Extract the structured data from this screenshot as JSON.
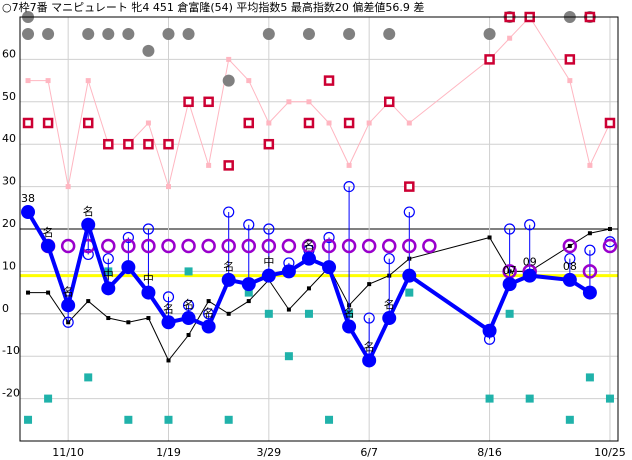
{
  "header": {
    "title": "○7枠7番 マニピュレート 牝4 451 倉富隆(54) 平均指数5 最高指数20 偏差値56.9 差"
  },
  "chart_data": {
    "type": "line",
    "title": "○7枠7番 マニピュレート 牝4 451 倉富隆(54) 平均指数5 最高指数20 偏差値56.9 差",
    "xlabel": "",
    "ylabel": "",
    "ylim": [
      -30,
      70
    ],
    "grid": true,
    "highlight_line": {
      "value": 9,
      "color": "#ffff00"
    },
    "x_ticks": [
      {
        "x": 2,
        "label": "11/10"
      },
      {
        "x": 7,
        "label": "1/19"
      },
      {
        "x": 12,
        "label": "3/29"
      },
      {
        "x": 17,
        "label": "6/7"
      },
      {
        "x": 23,
        "label": "8/16"
      },
      {
        "x": 29,
        "label": "10/25"
      }
    ],
    "y_ticks": [
      -20,
      -10,
      0,
      10,
      20,
      30,
      40,
      50,
      60
    ],
    "colors": {
      "main": "#0000ff",
      "purple": "#9900cc",
      "teal": "#20b2aa",
      "crimson": "#cc0033",
      "pink": "#ffb6c1",
      "gray": "#808080",
      "black": "#000000"
    },
    "series": [
      {
        "style": "main-blue",
        "points": [
          {
            "x": 0,
            "y": 24,
            "label": "38"
          },
          {
            "x": 1,
            "y": 16,
            "label": "名"
          },
          {
            "x": 2,
            "y": 2,
            "label": "名"
          },
          {
            "x": 3,
            "y": 21,
            "label": "名"
          },
          {
            "x": 4,
            "y": 6,
            "label": "中"
          },
          {
            "x": 5,
            "y": 11,
            "label": ""
          },
          {
            "x": 6,
            "y": 5,
            "label": "中"
          },
          {
            "x": 7,
            "y": -2,
            "label": "名"
          },
          {
            "x": 8,
            "y": -1,
            "label": "名"
          },
          {
            "x": 9,
            "y": -3,
            "label": "名"
          },
          {
            "x": 10,
            "y": 8,
            "label": "名"
          },
          {
            "x": 11,
            "y": 7,
            "label": ""
          },
          {
            "x": 12,
            "y": 9,
            "label": "中"
          },
          {
            "x": 13,
            "y": 10,
            "label": ""
          },
          {
            "x": 14,
            "y": 13,
            "label": "名"
          },
          {
            "x": 15,
            "y": 11,
            "label": ""
          },
          {
            "x": 16,
            "y": -3,
            "label": "名"
          },
          {
            "x": 17,
            "y": -11,
            "label": "名"
          },
          {
            "x": 18,
            "y": -1,
            "label": "名"
          },
          {
            "x": 19,
            "y": 9,
            "label": ""
          },
          {
            "x": 23,
            "y": -4,
            "label": ""
          },
          {
            "x": 24,
            "y": 7,
            "label": "07"
          },
          {
            "x": 25,
            "y": 9,
            "label": "09"
          },
          {
            "x": 27,
            "y": 8,
            "label": "08"
          },
          {
            "x": 28,
            "y": 5,
            "label": ""
          }
        ]
      },
      {
        "style": "open-blue-circle",
        "stems": true,
        "points": [
          {
            "x": 0,
            "y": 24,
            "label": ""
          },
          {
            "x": 1,
            "y": 16,
            "label": ""
          },
          {
            "x": 2,
            "y": -2,
            "label": ""
          },
          {
            "x": 3,
            "y": 14,
            "label": ""
          },
          {
            "x": 4,
            "y": 13,
            "label": ""
          },
          {
            "x": 5,
            "y": 18,
            "label": ""
          },
          {
            "x": 6,
            "y": 20,
            "label": ""
          },
          {
            "x": 7,
            "y": 4,
            "label": ""
          },
          {
            "x": 8,
            "y": 2,
            "label": ""
          },
          {
            "x": 9,
            "y": 0,
            "label": ""
          },
          {
            "x": 10,
            "y": 24,
            "label": ""
          },
          {
            "x": 11,
            "y": 21,
            "label": ""
          },
          {
            "x": 12,
            "y": 20,
            "label": ""
          },
          {
            "x": 13,
            "y": 12,
            "label": ""
          },
          {
            "x": 14,
            "y": 15,
            "label": ""
          },
          {
            "x": 15,
            "y": 18,
            "label": ""
          },
          {
            "x": 16,
            "y": 30,
            "label": ""
          },
          {
            "x": 17,
            "y": -1,
            "label": ""
          },
          {
            "x": 18,
            "y": 13,
            "label": ""
          },
          {
            "x": 19,
            "y": 24,
            "label": ""
          },
          {
            "x": 23,
            "y": -6,
            "label": ""
          },
          {
            "x": 24,
            "y": 20,
            "label": ""
          },
          {
            "x": 25,
            "y": 21,
            "label": ""
          },
          {
            "x": 27,
            "y": 13,
            "label": ""
          },
          {
            "x": 28,
            "y": 15,
            "label": ""
          },
          {
            "x": 29,
            "y": 17,
            "label": ""
          }
        ]
      },
      {
        "style": "purple-ring",
        "points": [
          {
            "x": 1,
            "y": 16,
            "label": ""
          },
          {
            "x": 2,
            "y": 16,
            "label": ""
          },
          {
            "x": 3,
            "y": 16,
            "label": ""
          },
          {
            "x": 4,
            "y": 16,
            "label": ""
          },
          {
            "x": 5,
            "y": 16,
            "label": ""
          },
          {
            "x": 6,
            "y": 16,
            "label": ""
          },
          {
            "x": 7,
            "y": 16,
            "label": ""
          },
          {
            "x": 8,
            "y": 16,
            "label": ""
          },
          {
            "x": 9,
            "y": 16,
            "label": ""
          },
          {
            "x": 10,
            "y": 16,
            "label": ""
          },
          {
            "x": 11,
            "y": 16,
            "label": ""
          },
          {
            "x": 12,
            "y": 16,
            "label": ""
          },
          {
            "x": 13,
            "y": 16,
            "label": ""
          },
          {
            "x": 14,
            "y": 16,
            "label": ""
          },
          {
            "x": 15,
            "y": 16,
            "label": ""
          },
          {
            "x": 16,
            "y": 16,
            "label": ""
          },
          {
            "x": 17,
            "y": 16,
            "label": ""
          },
          {
            "x": 18,
            "y": 16,
            "label": ""
          },
          {
            "x": 19,
            "y": 16,
            "label": ""
          },
          {
            "x": 20,
            "y": 16,
            "label": ""
          },
          {
            "x": 24,
            "y": 10,
            "label": ""
          },
          {
            "x": 25,
            "y": 10,
            "label": ""
          },
          {
            "x": 27,
            "y": 16,
            "label": ""
          },
          {
            "x": 28,
            "y": 10,
            "label": ""
          },
          {
            "x": 29,
            "y": 16,
            "label": ""
          }
        ]
      },
      {
        "style": "black-step",
        "points": [
          {
            "x": 0,
            "y": 5,
            "label": ""
          },
          {
            "x": 1,
            "y": 5,
            "label": ""
          },
          {
            "x": 2,
            "y": -2,
            "label": ""
          },
          {
            "x": 3,
            "y": 3,
            "label": ""
          },
          {
            "x": 4,
            "y": -1,
            "label": ""
          },
          {
            "x": 5,
            "y": -2,
            "label": ""
          },
          {
            "x": 6,
            "y": -1,
            "label": ""
          },
          {
            "x": 7,
            "y": -11,
            "label": ""
          },
          {
            "x": 8,
            "y": -5,
            "label": ""
          },
          {
            "x": 9,
            "y": 3,
            "label": ""
          },
          {
            "x": 10,
            "y": 0,
            "label": ""
          },
          {
            "x": 11,
            "y": 3,
            "label": ""
          },
          {
            "x": 12,
            "y": 8,
            "label": ""
          },
          {
            "x": 13,
            "y": 1,
            "label": ""
          },
          {
            "x": 14,
            "y": 6,
            "label": ""
          },
          {
            "x": 15,
            "y": 11,
            "label": ""
          },
          {
            "x": 16,
            "y": 2,
            "label": ""
          },
          {
            "x": 17,
            "y": 7,
            "label": ""
          },
          {
            "x": 18,
            "y": 9,
            "label": ""
          },
          {
            "x": 19,
            "y": 13,
            "label": ""
          },
          {
            "x": 23,
            "y": 18,
            "label": ""
          },
          {
            "x": 24,
            "y": 10,
            "label": ""
          },
          {
            "x": 25,
            "y": 10,
            "label": ""
          },
          {
            "x": 27,
            "y": 16,
            "label": ""
          },
          {
            "x": 28,
            "y": 19,
            "label": ""
          },
          {
            "x": 29,
            "y": 20,
            "label": ""
          }
        ]
      },
      {
        "style": "teal-square",
        "points": [
          {
            "x": 0,
            "y": -25,
            "label": ""
          },
          {
            "x": 1,
            "y": -20,
            "label": ""
          },
          {
            "x": 2,
            "y": 2,
            "label": ""
          },
          {
            "x": 3,
            "y": -15,
            "label": ""
          },
          {
            "x": 4,
            "y": 10,
            "label": ""
          },
          {
            "x": 5,
            "y": -25,
            "label": ""
          },
          {
            "x": 7,
            "y": -25,
            "label": ""
          },
          {
            "x": 8,
            "y": 10,
            "label": ""
          },
          {
            "x": 10,
            "y": -25,
            "label": ""
          },
          {
            "x": 11,
            "y": 5,
            "label": ""
          },
          {
            "x": 12,
            "y": 0,
            "label": ""
          },
          {
            "x": 13,
            "y": -10,
            "label": ""
          },
          {
            "x": 14,
            "y": 0,
            "label": ""
          },
          {
            "x": 15,
            "y": -25,
            "label": ""
          },
          {
            "x": 16,
            "y": 0,
            "label": ""
          },
          {
            "x": 19,
            "y": 5,
            "label": ""
          },
          {
            "x": 23,
            "y": -20,
            "label": ""
          },
          {
            "x": 24,
            "y": 0,
            "label": ""
          },
          {
            "x": 25,
            "y": -20,
            "label": ""
          },
          {
            "x": 27,
            "y": -25,
            "label": ""
          },
          {
            "x": 28,
            "y": -15,
            "label": ""
          },
          {
            "x": 29,
            "y": -20,
            "label": ""
          }
        ]
      },
      {
        "style": "crimson-square",
        "points": [
          {
            "x": 0,
            "y": 45,
            "label": ""
          },
          {
            "x": 1,
            "y": 45,
            "label": ""
          },
          {
            "x": 3,
            "y": 45,
            "label": ""
          },
          {
            "x": 4,
            "y": 40,
            "label": ""
          },
          {
            "x": 5,
            "y": 40,
            "label": ""
          },
          {
            "x": 6,
            "y": 40,
            "label": ""
          },
          {
            "x": 7,
            "y": 40,
            "label": ""
          },
          {
            "x": 8,
            "y": 50,
            "label": ""
          },
          {
            "x": 9,
            "y": 50,
            "label": ""
          },
          {
            "x": 10,
            "y": 35,
            "label": ""
          },
          {
            "x": 11,
            "y": 45,
            "label": ""
          },
          {
            "x": 12,
            "y": 40,
            "label": ""
          },
          {
            "x": 14,
            "y": 45,
            "label": ""
          },
          {
            "x": 15,
            "y": 55,
            "label": ""
          },
          {
            "x": 16,
            "y": 45,
            "label": ""
          },
          {
            "x": 18,
            "y": 50,
            "label": ""
          },
          {
            "x": 19,
            "y": 30,
            "label": ""
          },
          {
            "x": 23,
            "y": 60,
            "label": ""
          },
          {
            "x": 24,
            "y": 70,
            "label": ""
          },
          {
            "x": 25,
            "y": 70,
            "label": ""
          },
          {
            "x": 27,
            "y": 60,
            "label": ""
          },
          {
            "x": 28,
            "y": 70,
            "label": ""
          },
          {
            "x": 29,
            "y": 45,
            "label": ""
          }
        ]
      },
      {
        "style": "pink-thin",
        "points": [
          {
            "x": 0,
            "y": 55,
            "label": ""
          },
          {
            "x": 1,
            "y": 55,
            "label": ""
          },
          {
            "x": 2,
            "y": 30,
            "label": ""
          },
          {
            "x": 3,
            "y": 55,
            "label": ""
          },
          {
            "x": 4,
            "y": 40,
            "label": ""
          },
          {
            "x": 5,
            "y": 40,
            "label": ""
          },
          {
            "x": 6,
            "y": 45,
            "label": ""
          },
          {
            "x": 7,
            "y": 30,
            "label": ""
          },
          {
            "x": 8,
            "y": 50,
            "label": ""
          },
          {
            "x": 9,
            "y": 35,
            "label": ""
          },
          {
            "x": 10,
            "y": 60,
            "label": ""
          },
          {
            "x": 11,
            "y": 55,
            "label": ""
          },
          {
            "x": 12,
            "y": 45,
            "label": ""
          },
          {
            "x": 13,
            "y": 50,
            "label": ""
          },
          {
            "x": 14,
            "y": 50,
            "label": ""
          },
          {
            "x": 15,
            "y": 45,
            "label": ""
          },
          {
            "x": 16,
            "y": 35,
            "label": ""
          },
          {
            "x": 17,
            "y": 45,
            "label": ""
          },
          {
            "x": 18,
            "y": 50,
            "label": ""
          },
          {
            "x": 19,
            "y": 45,
            "label": ""
          },
          {
            "x": 23,
            "y": 60,
            "label": ""
          },
          {
            "x": 24,
            "y": 65,
            "label": ""
          },
          {
            "x": 25,
            "y": 70,
            "label": ""
          },
          {
            "x": 27,
            "y": 55,
            "label": ""
          },
          {
            "x": 28,
            "y": 35,
            "label": ""
          },
          {
            "x": 29,
            "y": 45,
            "label": ""
          }
        ]
      },
      {
        "style": "gray-dot",
        "points": [
          {
            "x": 0,
            "y": 70,
            "label": ""
          },
          {
            "x": 0,
            "y": 66,
            "label": ""
          },
          {
            "x": 1,
            "y": 66,
            "label": ""
          },
          {
            "x": 3,
            "y": 66,
            "label": ""
          },
          {
            "x": 4,
            "y": 66,
            "label": ""
          },
          {
            "x": 5,
            "y": 66,
            "label": ""
          },
          {
            "x": 6,
            "y": 62,
            "label": ""
          },
          {
            "x": 7,
            "y": 66,
            "label": ""
          },
          {
            "x": 8,
            "y": 66,
            "label": ""
          },
          {
            "x": 10,
            "y": 55,
            "label": ""
          },
          {
            "x": 12,
            "y": 66,
            "label": ""
          },
          {
            "x": 14,
            "y": 66,
            "label": ""
          },
          {
            "x": 16,
            "y": 66,
            "label": ""
          },
          {
            "x": 18,
            "y": 66,
            "label": ""
          },
          {
            "x": 23,
            "y": 66,
            "label": ""
          },
          {
            "x": 24,
            "y": 70,
            "label": ""
          },
          {
            "x": 27,
            "y": 70,
            "label": ""
          },
          {
            "x": 28,
            "y": 70,
            "label": ""
          }
        ]
      }
    ]
  }
}
